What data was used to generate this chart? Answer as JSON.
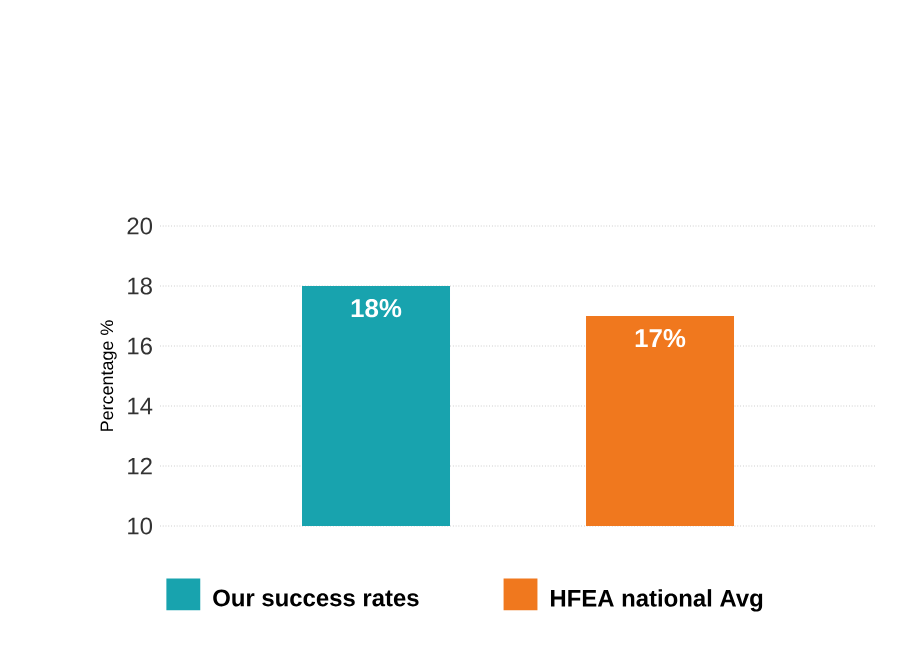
{
  "chart_data": {
    "type": "bar",
    "ylabel": "Percentage %",
    "categories": [
      null
    ],
    "series": [
      {
        "name": "Our success rates",
        "color": "#18a3ae",
        "values": [
          18
        ],
        "value_labels": [
          "18%"
        ]
      },
      {
        "name": "HFEA national Avg",
        "color": "#f0781e",
        "values": [
          17
        ],
        "value_labels": [
          "17%"
        ]
      }
    ],
    "ylim": [
      10,
      20
    ],
    "yticks": [
      10,
      12,
      14,
      16,
      18,
      20
    ],
    "grid": "y",
    "legend": "bottom"
  }
}
